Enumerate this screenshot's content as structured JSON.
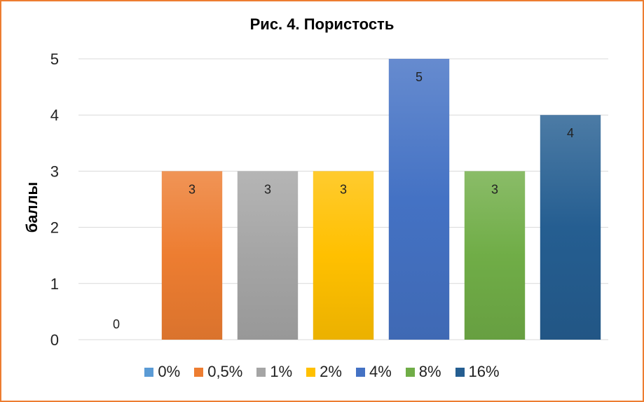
{
  "chart_data": {
    "type": "bar",
    "title": "Рис. 4. Пористость",
    "xlabel": "",
    "ylabel": "баллы",
    "ylim": [
      0,
      5
    ],
    "yticks": [
      "0",
      "1",
      "2",
      "3",
      "4",
      "5"
    ],
    "grid": true,
    "legend_position": "bottom",
    "series": [
      {
        "name": "0%",
        "value": 0,
        "color": "#5B9BD5"
      },
      {
        "name": "0,5%",
        "value": 3,
        "color": "#ED7D31"
      },
      {
        "name": "1%",
        "value": 3,
        "color": "#A5A5A5"
      },
      {
        "name": "2%",
        "value": 3,
        "color": "#FFC000"
      },
      {
        "name": "4%",
        "value": 5,
        "color": "#4472C4"
      },
      {
        "name": "8%",
        "value": 3,
        "color": "#70AD47"
      },
      {
        "name": "16%",
        "value": 4,
        "color": "#255E91"
      }
    ],
    "data_labels": [
      "0",
      "3",
      "3",
      "3",
      "5",
      "3",
      "4"
    ]
  },
  "frame_color": "#ED7D31"
}
